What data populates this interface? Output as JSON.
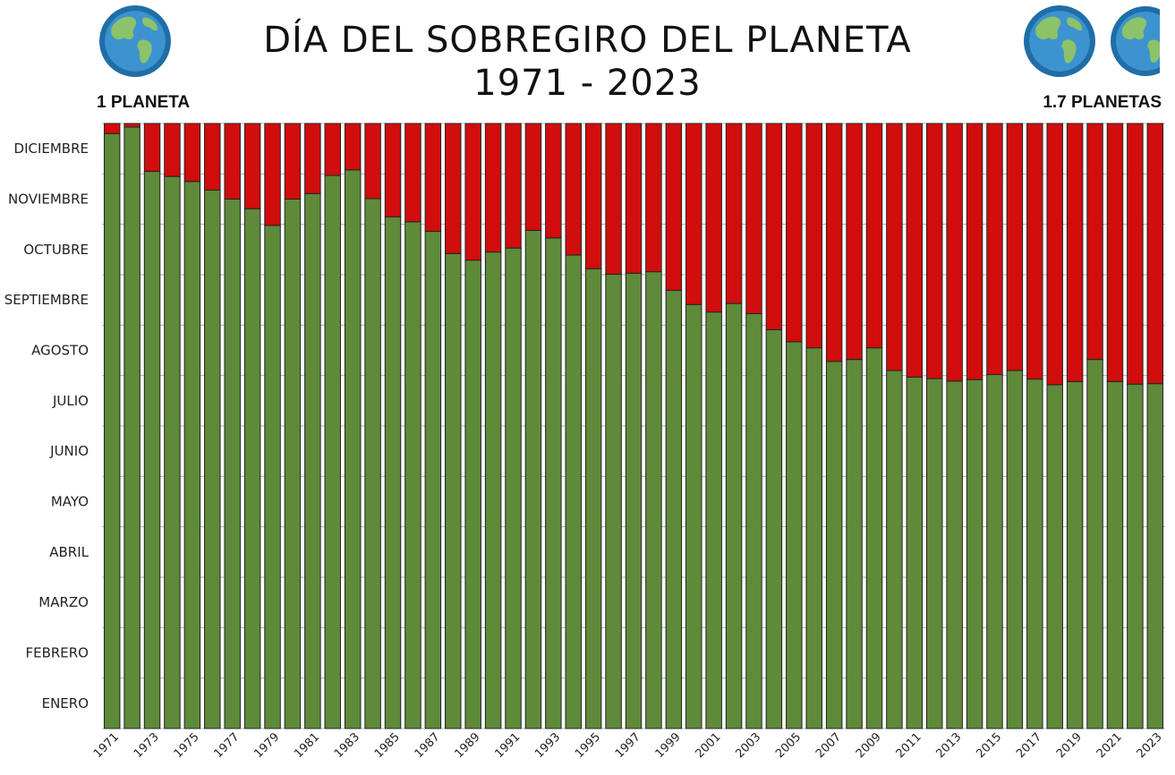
{
  "header": {
    "title_line1": "DÍA DEL SOBREGIRO DEL PLANETA",
    "title_line2": "1971 - 2023",
    "left_label": "1 PLANETA",
    "right_label": "1.7 PLANETAS",
    "left_icon": "earth-globe-icon",
    "right_icon": "earth-globes-icon"
  },
  "colors": {
    "green": "#5e8a3a",
    "red": "#d10d0d",
    "grid": "#b0b0b0",
    "bar_outline": "#222222"
  },
  "chart_data": {
    "type": "bar",
    "stacked": true,
    "x": [
      1971,
      1972,
      1973,
      1974,
      1975,
      1976,
      1977,
      1978,
      1979,
      1980,
      1981,
      1982,
      1983,
      1984,
      1985,
      1986,
      1987,
      1988,
      1989,
      1990,
      1991,
      1992,
      1993,
      1994,
      1995,
      1996,
      1997,
      1998,
      1999,
      2000,
      2001,
      2002,
      2003,
      2004,
      2005,
      2006,
      2007,
      2008,
      2009,
      2010,
      2011,
      2012,
      2013,
      2014,
      2015,
      2016,
      2017,
      2018,
      2019,
      2020,
      2021,
      2022,
      2023
    ],
    "x_tick_labels": [
      "1971",
      "1973",
      "1975",
      "1977",
      "1979",
      "1981",
      "1983",
      "1985",
      "1987",
      "1989",
      "1991",
      "1993",
      "1995",
      "1997",
      "1999",
      "2001",
      "2003",
      "2005",
      "2007",
      "2009",
      "2011",
      "2013",
      "2015",
      "2017",
      "2019",
      "2021",
      "2023"
    ],
    "y_tick_labels": [
      "ENERO",
      "FEBRERO",
      "MARZO",
      "ABRIL",
      "MAYO",
      "JUNIO",
      "JULIO",
      "AGOSTO",
      "SEPTIEMBRE",
      "OCTUBRE",
      "NOVIEMBRE",
      "DICIEMBRE"
    ],
    "ylim": [
      0,
      12
    ],
    "grid": true,
    "series": [
      {
        "color": "green",
        "values": [
          11.8,
          11.93,
          11.05,
          10.95,
          10.85,
          10.68,
          10.5,
          10.31,
          9.98,
          10.5,
          10.61,
          10.97,
          11.08,
          10.51,
          10.15,
          10.05,
          9.86,
          9.42,
          9.29,
          9.45,
          9.53,
          9.88,
          9.73,
          9.39,
          9.12,
          9.01,
          9.03,
          9.06,
          8.69,
          8.41,
          8.26,
          8.43,
          8.23,
          7.91,
          7.67,
          7.55,
          7.28,
          7.32,
          7.55,
          7.1,
          6.97,
          6.94,
          6.89,
          6.92,
          7.02,
          7.1,
          6.93,
          6.82,
          6.88,
          7.32,
          6.88,
          6.83,
          6.84
        ]
      },
      {
        "color": "red",
        "values": [
          0.2,
          0.07,
          0.95,
          1.05,
          1.15,
          1.32,
          1.5,
          1.69,
          2.02,
          1.5,
          1.39,
          1.03,
          0.92,
          1.49,
          1.85,
          1.95,
          2.14,
          2.58,
          2.71,
          2.55,
          2.47,
          2.12,
          2.27,
          2.61,
          2.88,
          2.99,
          2.97,
          2.94,
          3.31,
          3.59,
          3.74,
          3.57,
          3.77,
          4.09,
          4.33,
          4.45,
          4.72,
          4.68,
          4.45,
          4.9,
          5.03,
          5.06,
          5.11,
          5.08,
          4.98,
          4.9,
          5.07,
          5.18,
          5.12,
          4.68,
          5.12,
          5.17,
          5.16
        ]
      }
    ]
  }
}
